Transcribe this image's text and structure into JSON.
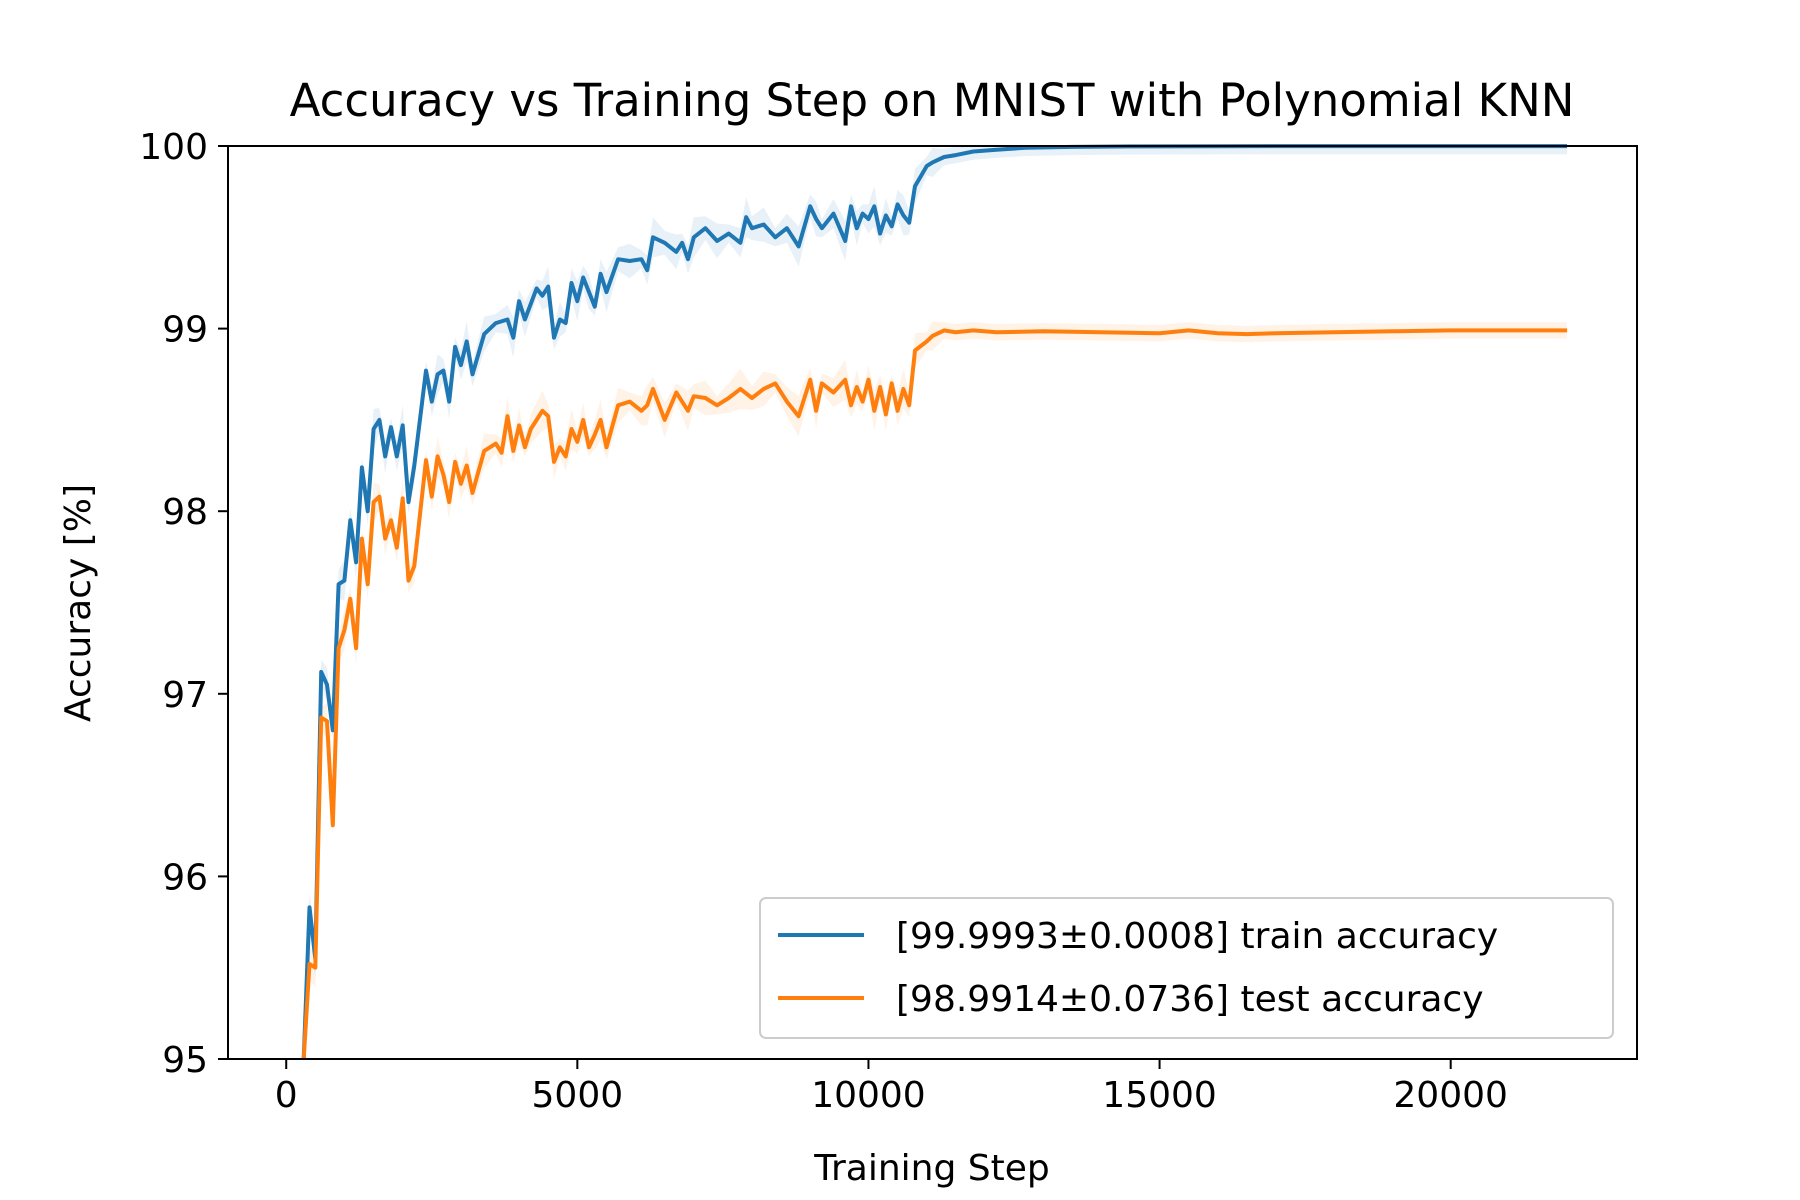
{
  "chart_data": {
    "type": "line",
    "title": "Accuracy vs Training Step on MNIST with Polynomial KNN",
    "xlabel": "Training Step",
    "ylabel": "Accuracy [%]",
    "xlim": [
      -1000,
      23200
    ],
    "ylim": [
      95,
      100
    ],
    "xticks": [
      0,
      5000,
      10000,
      15000,
      20000
    ],
    "yticks": [
      95,
      96,
      97,
      98,
      99,
      100
    ],
    "grid": false,
    "legend_position": "lower-right",
    "series": [
      {
        "name": "[99.9993±0.0008] train accuracy",
        "color": "#1f77b4",
        "x": [
          300,
          400,
          500,
          600,
          700,
          800,
          900,
          1000,
          1100,
          1200,
          1300,
          1400,
          1500,
          1600,
          1700,
          1800,
          1900,
          2000,
          2100,
          2200,
          2400,
          2500,
          2600,
          2700,
          2800,
          2900,
          3000,
          3100,
          3200,
          3400,
          3600,
          3800,
          3900,
          4000,
          4100,
          4300,
          4400,
          4500,
          4600,
          4700,
          4800,
          4900,
          5000,
          5100,
          5200,
          5300,
          5400,
          5500,
          5700,
          5900,
          6100,
          6200,
          6300,
          6500,
          6700,
          6800,
          6900,
          7000,
          7200,
          7400,
          7600,
          7800,
          7900,
          8000,
          8200,
          8400,
          8600,
          8800,
          9000,
          9100,
          9200,
          9400,
          9600,
          9700,
          9800,
          9900,
          10000,
          10100,
          10200,
          10300,
          10400,
          10500,
          10600,
          10700,
          10800,
          11000,
          11100,
          11300,
          11500,
          11800,
          12200,
          12700,
          13500,
          14500,
          16000,
          18000,
          20000,
          22000
        ],
        "y": [
          95.0,
          95.83,
          95.55,
          97.12,
          97.05,
          96.8,
          97.6,
          97.62,
          97.95,
          97.72,
          98.24,
          98.0,
          98.45,
          98.5,
          98.3,
          98.46,
          98.3,
          98.47,
          98.05,
          98.25,
          98.77,
          98.6,
          98.75,
          98.77,
          98.6,
          98.9,
          98.8,
          98.93,
          98.75,
          98.97,
          99.03,
          99.05,
          98.95,
          99.15,
          99.05,
          99.22,
          99.18,
          99.23,
          98.95,
          99.05,
          99.03,
          99.25,
          99.15,
          99.28,
          99.2,
          99.12,
          99.3,
          99.2,
          99.38,
          99.37,
          99.38,
          99.32,
          99.5,
          99.47,
          99.42,
          99.47,
          99.38,
          99.5,
          99.55,
          99.48,
          99.52,
          99.47,
          99.61,
          99.55,
          99.57,
          99.5,
          99.55,
          99.45,
          99.67,
          99.6,
          99.55,
          99.63,
          99.48,
          99.67,
          99.55,
          99.63,
          99.6,
          99.67,
          99.52,
          99.62,
          99.56,
          99.68,
          99.62,
          99.58,
          99.78,
          99.89,
          99.91,
          99.94,
          99.95,
          99.97,
          99.98,
          99.99,
          99.995,
          99.998,
          99.999,
          99.9993,
          99.9993,
          99.9993
        ]
      },
      {
        "name": "[98.9914±0.0736] test accuracy",
        "color": "#ff7f0e",
        "x": [
          300,
          400,
          500,
          600,
          700,
          800,
          900,
          1000,
          1100,
          1200,
          1300,
          1400,
          1500,
          1600,
          1700,
          1800,
          1900,
          2000,
          2100,
          2200,
          2400,
          2500,
          2600,
          2700,
          2800,
          2900,
          3000,
          3100,
          3200,
          3400,
          3600,
          3700,
          3800,
          3900,
          4000,
          4100,
          4200,
          4400,
          4500,
          4600,
          4700,
          4800,
          4900,
          5000,
          5100,
          5200,
          5300,
          5400,
          5500,
          5700,
          5900,
          6100,
          6200,
          6300,
          6500,
          6700,
          6800,
          6900,
          7000,
          7200,
          7400,
          7600,
          7800,
          8000,
          8200,
          8400,
          8600,
          8800,
          9000,
          9100,
          9200,
          9400,
          9600,
          9700,
          9800,
          9900,
          10000,
          10100,
          10200,
          10300,
          10400,
          10500,
          10600,
          10700,
          10800,
          11000,
          11100,
          11300,
          11500,
          11800,
          12200,
          13000,
          14000,
          15000,
          15500,
          16000,
          16500,
          17000,
          18000,
          19000,
          20000,
          21000,
          22000
        ],
        "y": [
          94.95,
          95.52,
          95.5,
          96.87,
          96.85,
          96.28,
          97.25,
          97.35,
          97.52,
          97.25,
          97.85,
          97.6,
          98.05,
          98.08,
          97.85,
          97.95,
          97.8,
          98.07,
          97.62,
          97.7,
          98.28,
          98.08,
          98.3,
          98.2,
          98.05,
          98.27,
          98.15,
          98.25,
          98.1,
          98.33,
          98.37,
          98.32,
          98.52,
          98.33,
          98.47,
          98.35,
          98.45,
          98.55,
          98.52,
          98.27,
          98.35,
          98.3,
          98.45,
          98.38,
          98.5,
          98.35,
          98.42,
          98.5,
          98.35,
          98.58,
          98.6,
          98.55,
          98.58,
          98.67,
          98.5,
          98.65,
          98.6,
          98.55,
          98.63,
          98.62,
          98.58,
          98.62,
          98.67,
          98.62,
          98.67,
          98.7,
          98.6,
          98.52,
          98.72,
          98.55,
          98.7,
          98.65,
          98.72,
          98.58,
          98.68,
          98.6,
          98.72,
          98.55,
          98.68,
          98.53,
          98.7,
          98.55,
          98.67,
          98.58,
          98.88,
          98.93,
          98.96,
          98.99,
          98.98,
          98.99,
          98.98,
          98.985,
          98.98,
          98.975,
          98.99,
          98.975,
          98.97,
          98.975,
          98.98,
          98.985,
          98.99,
          98.99,
          98.99
        ]
      }
    ]
  }
}
